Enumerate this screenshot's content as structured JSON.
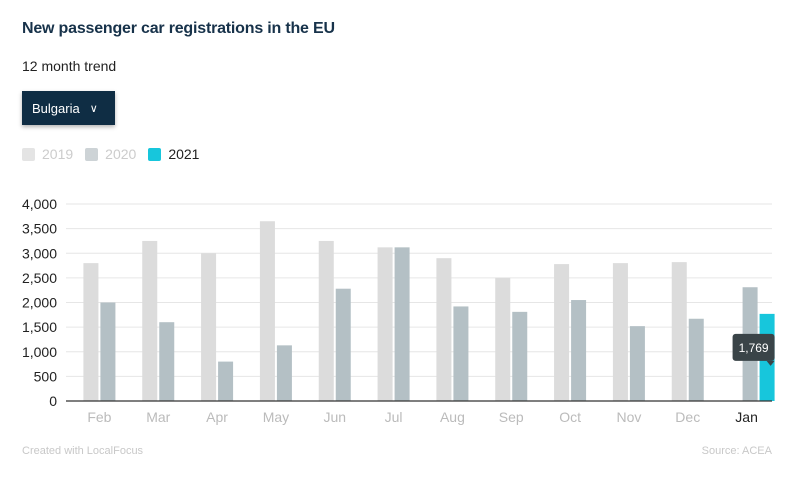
{
  "header": {
    "title": "New passenger car registrations in the EU",
    "subtitle": "12 month trend"
  },
  "dropdown": {
    "selected": "Bulgaria",
    "icon": "chevron-down-icon"
  },
  "footer": {
    "credit": "Created with LocalFocus",
    "source": "Source: ACEA"
  },
  "tooltip": {
    "value": "1,769"
  },
  "colors": {
    "2019": "#dcdcdc",
    "2020": "#b4c0c5",
    "2021": "#17c6dc",
    "text": "#17324a"
  },
  "chart_data": {
    "type": "bar",
    "title": "New passenger car registrations in the EU",
    "subtitle": "12 month trend",
    "categories": [
      "Feb",
      "Mar",
      "Apr",
      "May",
      "Jun",
      "Jul",
      "Aug",
      "Sep",
      "Oct",
      "Nov",
      "Dec",
      "Jan"
    ],
    "highlight_category": "Jan",
    "series": [
      {
        "name": "2019",
        "values": [
          2800,
          3250,
          3000,
          3650,
          3250,
          3120,
          2900,
          2500,
          2780,
          2800,
          2820,
          null
        ]
      },
      {
        "name": "2020",
        "values": [
          2000,
          1600,
          800,
          1130,
          2280,
          3120,
          1920,
          1810,
          2050,
          1520,
          1670,
          2310
        ]
      },
      {
        "name": "2021",
        "values": [
          null,
          null,
          null,
          null,
          null,
          null,
          null,
          null,
          null,
          null,
          null,
          1769
        ]
      }
    ],
    "yticks": [
      "0",
      "500",
      "1,000",
      "1,500",
      "2,000",
      "2,500",
      "3,000",
      "3,500",
      "4,000"
    ],
    "ylim": [
      0,
      4000
    ],
    "grid": true,
    "legend": "top-left",
    "xlabel": "",
    "ylabel": ""
  }
}
